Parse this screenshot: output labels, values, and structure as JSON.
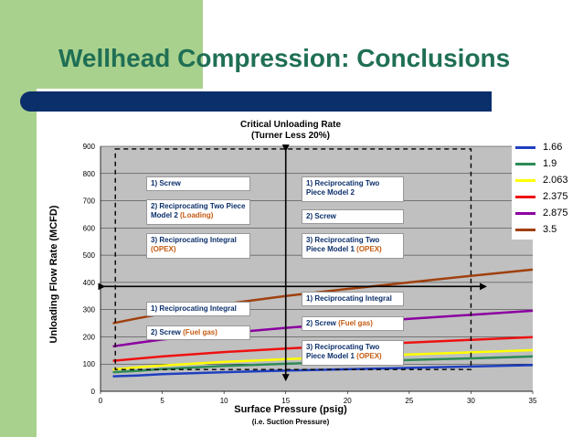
{
  "slide": {
    "title": "Wellhead Compression: Conclusions"
  },
  "chart_data": {
    "type": "line",
    "title": "Critical Unloading Rate",
    "subtitle": "(Turner Less 20%)",
    "xlabel": "Surface Pressure (psig)",
    "xlabel_sub": "(i.e. Suction Pressure)",
    "ylabel": "Unloading Flow Rate (MCFD)",
    "xlim": [
      0,
      35
    ],
    "ylim": [
      0,
      900
    ],
    "xticks": [
      0,
      5,
      10,
      15,
      20,
      25,
      30,
      35
    ],
    "yticks": [
      0,
      100,
      200,
      300,
      400,
      500,
      600,
      700,
      800,
      900
    ],
    "grid": true,
    "legend_position": "right",
    "x": [
      1,
      3,
      5,
      10,
      15,
      20,
      25,
      30,
      35
    ],
    "series": [
      {
        "name": "1.66",
        "color": "#1f3fbf",
        "values": [
          55,
          58,
          63,
          70,
          76,
          81,
          86,
          91,
          96
        ]
      },
      {
        "name": "1.9",
        "color": "#2e8b57",
        "values": [
          70,
          75,
          82,
          93,
          101,
          108,
          115,
          121,
          128
        ]
      },
      {
        "name": "2.063",
        "color": "#ffff00",
        "values": [
          80,
          88,
          95,
          108,
          118,
          127,
          135,
          143,
          151
        ]
      },
      {
        "name": "2.375",
        "color": "#ee1111",
        "values": [
          112,
          120,
          128,
          144,
          157,
          168,
          179,
          189,
          199
        ]
      },
      {
        "name": "2.875",
        "color": "#8b00a0",
        "values": [
          165,
          178,
          190,
          213,
          233,
          250,
          266,
          281,
          296
        ]
      },
      {
        "name": "3.5",
        "color": "#a0400f",
        "values": [
          250,
          268,
          285,
          320,
          350,
          376,
          400,
          424,
          447
        ]
      }
    ],
    "annotations": {
      "top_left": [
        {
          "text": "1) Screw"
        },
        {
          "text": "2) Reciprocating Two Piece Model 2",
          "note": "(Loading)"
        },
        {
          "text": "3) Reciprocating Integral",
          "note": "(OPEX)"
        }
      ],
      "top_right": [
        {
          "text": "1) Reciprocating Two Piece Model 2"
        },
        {
          "text": "2) Screw"
        },
        {
          "text": "3) Reciprocating Two Piece Model 1",
          "note": "(OPEX)"
        }
      ],
      "bottom_left": [
        {
          "text": "1) Reciprocating Integral"
        },
        {
          "text": "2) Screw",
          "note": "(Fuel gas)"
        }
      ],
      "bottom_right": [
        {
          "text": "1) Reciprocating Integral"
        },
        {
          "text": "2) Screw",
          "note": "(Fuel gas)"
        },
        {
          "text": "3) Reciprocating Two Piece Model 1",
          "note": "(OPEX)"
        }
      ]
    }
  }
}
